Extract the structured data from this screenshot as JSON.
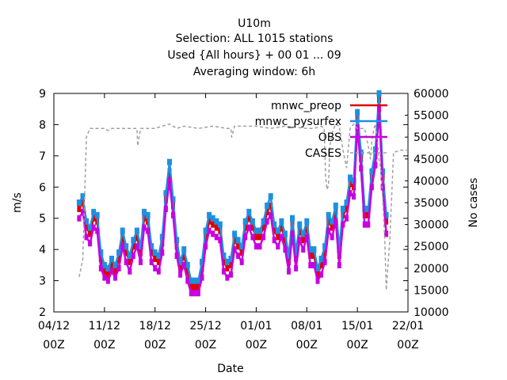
{
  "title_lines": [
    "U10m",
    "Selection: ALL   1015 stations",
    "Used {All hours} + 00 01 ... 09",
    "Averaging window:  6h"
  ],
  "chart_data": {
    "type": "line",
    "xlabel": "Date",
    "ylabel": "m/s",
    "y2label": "No cases",
    "ylim": [
      2,
      9
    ],
    "y2lim": [
      10000,
      60000
    ],
    "yticks": [
      "2",
      "3",
      "4",
      "5",
      "6",
      "7",
      "8",
      "9"
    ],
    "y2ticks": [
      "10000",
      "15000",
      "20000",
      "25000",
      "30000",
      "35000",
      "40000",
      "45000",
      "50000",
      "55000",
      "60000"
    ],
    "xticks": [
      {
        "day": 0,
        "date": "04/12",
        "hour": "00Z"
      },
      {
        "day": 7,
        "date": "11/12",
        "hour": "00Z"
      },
      {
        "day": 14,
        "date": "18/12",
        "hour": "00Z"
      },
      {
        "day": 21,
        "date": "25/12",
        "hour": "00Z"
      },
      {
        "day": 28,
        "date": "01/01",
        "hour": "00Z"
      },
      {
        "day": 35,
        "date": "08/01",
        "hour": "00Z"
      },
      {
        "day": 42,
        "date": "15/01",
        "hour": "00Z"
      },
      {
        "day": 49,
        "date": "22/01",
        "hour": "00Z"
      }
    ],
    "x_start": "04/12 00Z",
    "x_unit": "days",
    "grid": false,
    "legend_position": "top-right",
    "series": [
      {
        "name": "mnwc_preop",
        "color": "#e00000",
        "axis": "left",
        "x": [
          3.5,
          4.0,
          4.5,
          5.0,
          5.5,
          6.0,
          6.5,
          7.0,
          7.5,
          8.0,
          8.5,
          9.0,
          9.5,
          10.0,
          10.5,
          11.0,
          11.5,
          12.0,
          12.5,
          13.0,
          13.5,
          14.0,
          14.5,
          15.0,
          15.5,
          16.0,
          16.5,
          17.0,
          17.5,
          18.0,
          18.5,
          19.0,
          19.5,
          20.0,
          20.5,
          21.0,
          21.5,
          22.0,
          22.5,
          23.0,
          23.5,
          24.0,
          24.5,
          25.0,
          25.5,
          26.0,
          26.5,
          27.0,
          27.5,
          28.0,
          28.5,
          29.0,
          29.5,
          30.0,
          30.5,
          31.0,
          31.5,
          32.0,
          32.5,
          33.0,
          33.5,
          34.0,
          34.5,
          35.0,
          35.5,
          36.0,
          36.5,
          37.0,
          37.5,
          38.0,
          38.5,
          39.0,
          39.5,
          40.0,
          40.5,
          41.0,
          41.5,
          42.0,
          42.5,
          43.0,
          43.5,
          44.0,
          44.5,
          45.0,
          45.5,
          46.0
        ],
        "values": [
          5.3,
          5.5,
          4.7,
          4.5,
          5.0,
          4.9,
          3.7,
          3.3,
          3.2,
          3.5,
          3.3,
          3.7,
          4.4,
          3.9,
          3.6,
          4.1,
          4.4,
          3.9,
          5.0,
          4.9,
          3.9,
          3.7,
          3.6,
          4.2,
          5.6,
          6.5,
          5.4,
          4.1,
          3.4,
          3.8,
          3.3,
          2.8,
          2.8,
          2.8,
          3.4,
          4.4,
          4.9,
          4.8,
          4.7,
          4.6,
          3.6,
          3.4,
          3.5,
          4.3,
          4.1,
          3.9,
          4.7,
          5.0,
          4.7,
          4.4,
          4.4,
          4.7,
          5.2,
          5.4,
          4.6,
          4.4,
          4.7,
          4.3,
          3.6,
          4.8,
          3.7,
          4.6,
          4.3,
          4.7,
          3.8,
          3.8,
          3.2,
          3.5,
          3.9,
          4.9,
          4.7,
          5.2,
          3.8,
          5.1,
          5.3,
          6.1,
          6.0,
          8.2,
          6.9,
          5.1,
          5.1,
          6.3,
          7.0,
          8.8,
          6.3,
          4.9
        ]
      },
      {
        "name": "mnwc_pysurfex",
        "color": "#1e90e0",
        "axis": "left",
        "x": [
          3.5,
          4.0,
          4.5,
          5.0,
          5.5,
          6.0,
          6.5,
          7.0,
          7.5,
          8.0,
          8.5,
          9.0,
          9.5,
          10.0,
          10.5,
          11.0,
          11.5,
          12.0,
          12.5,
          13.0,
          13.5,
          14.0,
          14.5,
          15.0,
          15.5,
          16.0,
          16.5,
          17.0,
          17.5,
          18.0,
          18.5,
          19.0,
          19.5,
          20.0,
          20.5,
          21.0,
          21.5,
          22.0,
          22.5,
          23.0,
          23.5,
          24.0,
          24.5,
          25.0,
          25.5,
          26.0,
          26.5,
          27.0,
          27.5,
          28.0,
          28.5,
          29.0,
          29.5,
          30.0,
          30.5,
          31.0,
          31.5,
          32.0,
          32.5,
          33.0,
          33.5,
          34.0,
          34.5,
          35.0,
          35.5,
          36.0,
          36.5,
          37.0,
          37.5,
          38.0,
          38.5,
          39.0,
          39.5,
          40.0,
          40.5,
          41.0,
          41.5,
          42.0,
          42.5,
          43.0,
          43.5,
          44.0,
          44.5,
          45.0,
          45.5,
          46.0
        ],
        "values": [
          5.5,
          5.7,
          4.9,
          4.7,
          5.2,
          5.1,
          3.9,
          3.5,
          3.4,
          3.7,
          3.5,
          3.9,
          4.6,
          4.1,
          3.8,
          4.3,
          4.6,
          4.1,
          5.2,
          5.1,
          4.1,
          3.9,
          3.8,
          4.4,
          5.8,
          6.8,
          5.6,
          4.3,
          3.6,
          4.0,
          3.5,
          3.0,
          3.0,
          3.0,
          3.6,
          4.6,
          5.1,
          5.0,
          4.9,
          4.8,
          3.8,
          3.6,
          3.7,
          4.5,
          4.3,
          4.1,
          4.9,
          5.2,
          4.9,
          4.6,
          4.6,
          4.9,
          5.4,
          5.7,
          4.8,
          4.6,
          4.9,
          4.5,
          3.8,
          5.0,
          3.9,
          4.8,
          4.5,
          4.9,
          4.0,
          4.0,
          3.4,
          3.7,
          4.1,
          5.1,
          4.9,
          5.4,
          4.0,
          5.3,
          5.5,
          6.3,
          6.2,
          8.4,
          7.1,
          5.3,
          5.3,
          6.5,
          7.2,
          9.0,
          6.5,
          5.1
        ]
      },
      {
        "name": "OBS",
        "color": "#c800e0",
        "axis": "left",
        "x": [
          3.5,
          4.0,
          4.5,
          5.0,
          5.5,
          6.0,
          6.5,
          7.0,
          7.5,
          8.0,
          8.5,
          9.0,
          9.5,
          10.0,
          10.5,
          11.0,
          11.5,
          12.0,
          12.5,
          13.0,
          13.5,
          14.0,
          14.5,
          15.0,
          15.5,
          16.0,
          16.5,
          17.0,
          17.5,
          18.0,
          18.5,
          19.0,
          19.5,
          20.0,
          20.5,
          21.0,
          21.5,
          22.0,
          22.5,
          23.0,
          23.5,
          24.0,
          24.5,
          25.0,
          25.5,
          26.0,
          26.5,
          27.0,
          27.5,
          28.0,
          28.5,
          29.0,
          29.5,
          30.0,
          30.5,
          31.0,
          31.5,
          32.0,
          32.5,
          33.0,
          33.5,
          34.0,
          34.5,
          35.0,
          35.5,
          36.0,
          36.5,
          37.0,
          37.5,
          38.0,
          38.5,
          39.0,
          39.5,
          40.0,
          40.5,
          41.0,
          41.5,
          42.0,
          42.5,
          43.0,
          43.5,
          44.0,
          44.5,
          45.0,
          45.5,
          46.0
        ],
        "values": [
          5.0,
          5.2,
          4.4,
          4.2,
          4.7,
          4.6,
          3.4,
          3.1,
          3.0,
          3.3,
          3.1,
          3.4,
          4.1,
          3.6,
          3.3,
          3.8,
          4.1,
          3.6,
          4.7,
          4.6,
          3.6,
          3.4,
          3.3,
          3.9,
          5.3,
          6.2,
          5.1,
          3.8,
          3.2,
          3.5,
          3.0,
          2.6,
          2.6,
          2.6,
          3.1,
          4.1,
          4.6,
          4.5,
          4.4,
          4.3,
          3.3,
          3.1,
          3.2,
          4.0,
          3.8,
          3.6,
          4.4,
          4.7,
          4.4,
          4.1,
          4.1,
          4.4,
          4.9,
          5.1,
          4.3,
          4.1,
          4.4,
          4.0,
          3.3,
          4.5,
          3.4,
          4.3,
          4.0,
          4.4,
          3.5,
          3.5,
          3.0,
          3.2,
          3.6,
          4.6,
          4.4,
          4.9,
          3.5,
          4.8,
          5.0,
          5.8,
          5.7,
          7.9,
          6.6,
          4.8,
          4.8,
          6.0,
          6.7,
          8.5,
          6.0,
          4.5
        ]
      },
      {
        "name": "CASES",
        "color": "#a0a0a0",
        "axis": "right",
        "dashed": true,
        "x": [
          3.5,
          4.0,
          4.5,
          5.0,
          6.0,
          7.0,
          7.5,
          8.0,
          9.0,
          10.0,
          11.0,
          11.5,
          11.6,
          12.0,
          14.0,
          15.0,
          16.0,
          17.0,
          18.0,
          20.0,
          22.0,
          24.0,
          24.5,
          24.6,
          25.0,
          28.0,
          30.0,
          32.0,
          35.0,
          36.0,
          37.0,
          37.4,
          37.6,
          37.8,
          38.0,
          38.2,
          38.5,
          39.0,
          39.5,
          40.0,
          40.5,
          41.0,
          41.5,
          42.0,
          42.5,
          43.0,
          43.5,
          43.8,
          44.0,
          44.3,
          44.5,
          44.8,
          45.0,
          45.3,
          45.5,
          45.8,
          46.0,
          46.5,
          47.0,
          48.0,
          49.0
        ],
        "values": [
          18000,
          22000,
          50000,
          52000,
          52000,
          52000,
          51500,
          52000,
          52000,
          52000,
          52000,
          52000,
          48000,
          52000,
          52000,
          52500,
          53000,
          52000,
          52500,
          52000,
          52500,
          52000,
          52000,
          50000,
          52500,
          52500,
          52000,
          52500,
          52000,
          52000,
          52500,
          52000,
          41000,
          38000,
          39000,
          48000,
          51000,
          53000,
          52500,
          47000,
          43000,
          52000,
          53000,
          52000,
          52000,
          52000,
          48000,
          45000,
          49000,
          52000,
          53000,
          49000,
          45000,
          42000,
          36000,
          26000,
          15000,
          27000,
          46500,
          47000,
          47000
        ]
      }
    ]
  }
}
